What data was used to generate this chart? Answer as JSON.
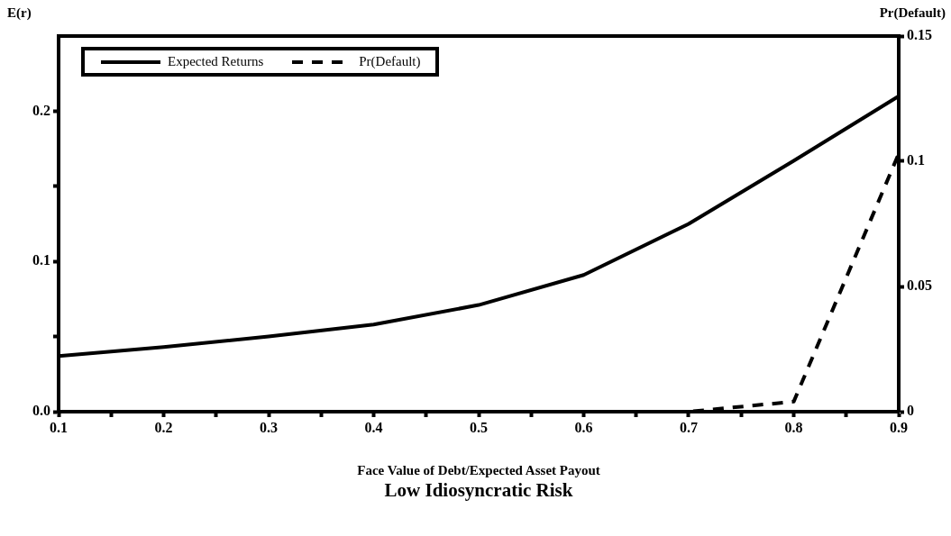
{
  "chart_data": {
    "type": "line",
    "title": "Low Idiosyncratic Risk",
    "xlabel": "Face Value of Debt/Expected Asset Payout",
    "ylabel": "E(r)",
    "y2label": "Pr(Default)",
    "x": [
      0.1,
      0.2,
      0.3,
      0.4,
      0.5,
      0.6,
      0.7,
      0.8,
      0.9
    ],
    "series": [
      {
        "name": "Expected Returns",
        "color": "#000000",
        "line_style": "solid",
        "values": [
          0.037,
          0.043,
          0.05,
          0.058,
          0.071,
          0.091,
          0.125,
          0.167,
          0.21
        ]
      },
      {
        "name": "Pr(Default)",
        "color": "#000000",
        "line_style": "dashed",
        "axis": "y2",
        "values": [
          0,
          0,
          0,
          0,
          0,
          0,
          0,
          0.004,
          0.103
        ]
      }
    ],
    "xlim": [
      0.1,
      0.9
    ],
    "xticks": [
      0.1,
      {
        "value": 0.15,
        "label": null
      },
      0.2,
      {
        "value": 0.25,
        "label": null
      },
      0.3,
      {
        "value": 0.35,
        "label": null
      },
      0.4,
      {
        "value": 0.45,
        "label": null
      },
      0.5,
      {
        "value": 0.55,
        "label": null
      },
      0.6,
      {
        "value": 0.65,
        "label": null
      },
      0.7,
      {
        "value": 0.75,
        "label": null
      },
      0.8,
      {
        "value": 0.85,
        "label": null
      },
      0.9
    ],
    "ylim": [
      0,
      0.25
    ],
    "yticks": [
      {
        "value": 0,
        "label": "0.0"
      },
      {
        "value": 0.05,
        "label": null
      },
      0.1,
      {
        "value": 0.15,
        "label": null
      },
      0.2
    ],
    "y2lim": [
      0,
      0.15
    ],
    "y2ticks": [
      0,
      0.05,
      0.1,
      0.15
    ],
    "legend": "top left",
    "grid": false,
    "marker": "none"
  }
}
